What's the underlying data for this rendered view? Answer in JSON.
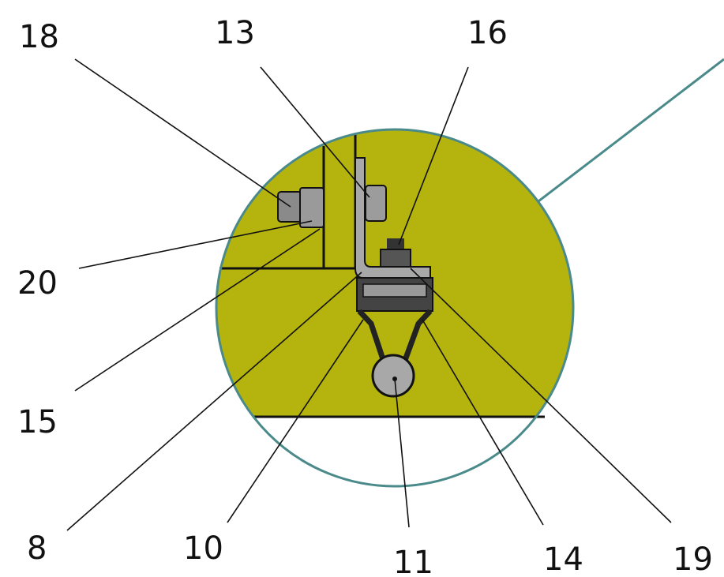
{
  "labels": [
    "18",
    "13",
    "16",
    "20",
    "15",
    "8",
    "10",
    "11",
    "14",
    "19"
  ]
}
